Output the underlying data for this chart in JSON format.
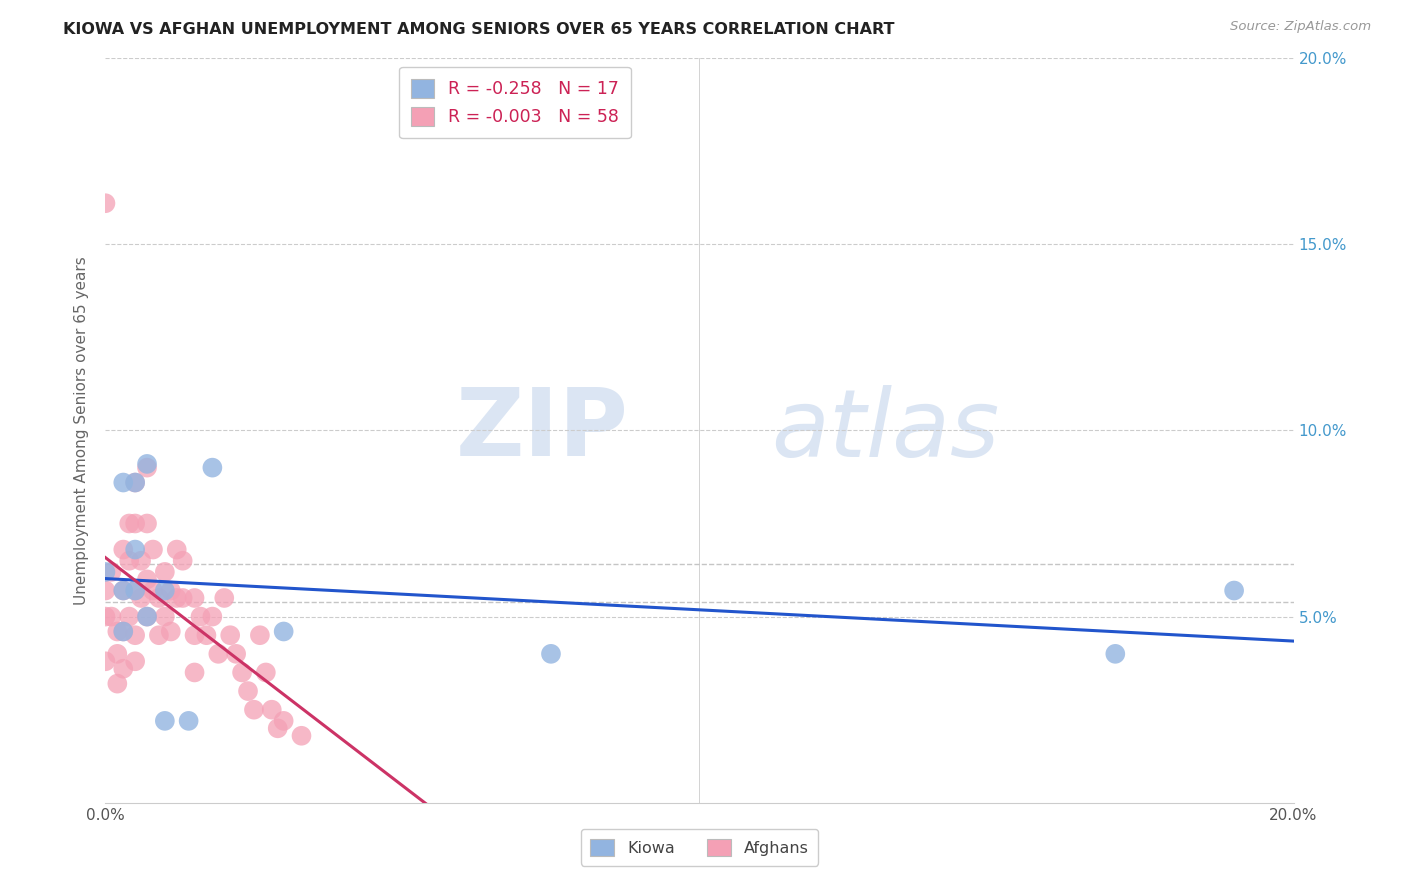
{
  "title": "KIOWA VS AFGHAN UNEMPLOYMENT AMONG SENIORS OVER 65 YEARS CORRELATION CHART",
  "source": "Source: ZipAtlas.com",
  "ylabel": "Unemployment Among Seniors over 65 years",
  "xlim": [
    0,
    0.2
  ],
  "ylim": [
    0,
    0.2
  ],
  "kiowa_color": "#92b4e0",
  "afghan_color": "#f4a0b5",
  "kiowa_line_color": "#2255cc",
  "afghan_line_color": "#cc3366",
  "right_tick_color": "#4499cc",
  "grid_color": "#cccccc",
  "legend_kiowa_r": "-0.258",
  "legend_kiowa_n": "17",
  "legend_afghan_r": "-0.003",
  "legend_afghan_n": "58",
  "kiowa_x": [
    0.0,
    0.003,
    0.003,
    0.003,
    0.005,
    0.005,
    0.005,
    0.007,
    0.007,
    0.01,
    0.01,
    0.014,
    0.018,
    0.03,
    0.075,
    0.17,
    0.19
  ],
  "kiowa_y": [
    0.062,
    0.086,
    0.057,
    0.046,
    0.086,
    0.068,
    0.057,
    0.091,
    0.05,
    0.057,
    0.022,
    0.022,
    0.09,
    0.046,
    0.04,
    0.04,
    0.057
  ],
  "afghan_x": [
    0.0,
    0.0,
    0.0,
    0.0,
    0.001,
    0.001,
    0.002,
    0.002,
    0.002,
    0.003,
    0.003,
    0.003,
    0.003,
    0.004,
    0.004,
    0.004,
    0.005,
    0.005,
    0.005,
    0.005,
    0.005,
    0.006,
    0.006,
    0.007,
    0.007,
    0.007,
    0.007,
    0.008,
    0.008,
    0.009,
    0.009,
    0.01,
    0.01,
    0.011,
    0.011,
    0.012,
    0.012,
    0.013,
    0.013,
    0.015,
    0.015,
    0.015,
    0.016,
    0.017,
    0.018,
    0.019,
    0.02,
    0.021,
    0.022,
    0.023,
    0.024,
    0.025,
    0.026,
    0.027,
    0.028,
    0.029,
    0.03,
    0.033
  ],
  "afghan_y": [
    0.161,
    0.057,
    0.05,
    0.038,
    0.062,
    0.05,
    0.046,
    0.04,
    0.032,
    0.068,
    0.057,
    0.046,
    0.036,
    0.075,
    0.065,
    0.05,
    0.086,
    0.075,
    0.057,
    0.045,
    0.038,
    0.065,
    0.055,
    0.09,
    0.075,
    0.06,
    0.05,
    0.068,
    0.057,
    0.055,
    0.045,
    0.062,
    0.05,
    0.057,
    0.046,
    0.068,
    0.055,
    0.065,
    0.055,
    0.055,
    0.045,
    0.035,
    0.05,
    0.045,
    0.05,
    0.04,
    0.055,
    0.045,
    0.04,
    0.035,
    0.03,
    0.025,
    0.045,
    0.035,
    0.025,
    0.02,
    0.022,
    0.018
  ]
}
